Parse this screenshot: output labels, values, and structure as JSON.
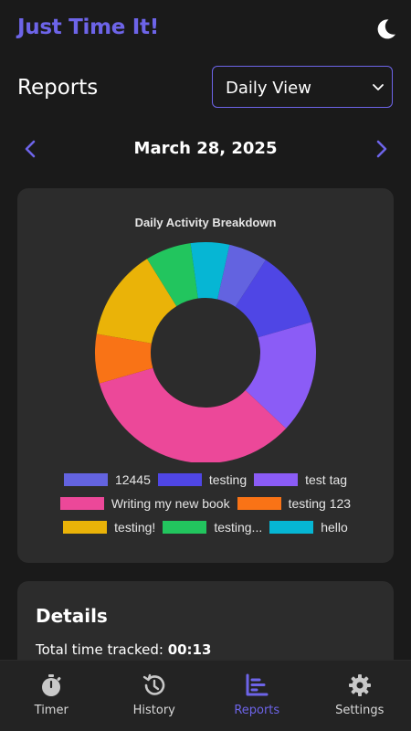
{
  "app": {
    "title": "Just Time It!"
  },
  "header": {
    "theme_icon": "moon-icon"
  },
  "reports": {
    "title": "Reports",
    "view_select": {
      "selected": "Daily View",
      "icon": "chevron-down-icon"
    }
  },
  "date_nav": {
    "date": "March 28, 2025",
    "prev_icon": "chevron-left-icon",
    "next_icon": "chevron-right-icon"
  },
  "colors": {
    "accent": "#6d64e8",
    "card": "#2c2c2c",
    "background": "#1a1a1a"
  },
  "chart_data": {
    "type": "pie",
    "title": "Daily Activity Breakdown",
    "donut": true,
    "legend_position": "bottom",
    "categories": [
      "12445",
      "testing",
      "test tag",
      "Writing my new book",
      "testing 123",
      "testing!",
      "testing...",
      "hello"
    ],
    "values": [
      5.5,
      11,
      16,
      32.5,
      7,
      13,
      6.5,
      5.5
    ],
    "colors": [
      "#6363e0",
      "#4f46e5",
      "#8b5cf6",
      "#ec4899",
      "#f97316",
      "#eab308",
      "#22c55e",
      "#06b6d4"
    ]
  },
  "details": {
    "title": "Details",
    "total_label": "Total time tracked:",
    "total_value": "00:13"
  },
  "bottom_nav": {
    "items": [
      {
        "label": "Timer",
        "icon": "stopwatch-icon",
        "active": false
      },
      {
        "label": "History",
        "icon": "history-icon",
        "active": false
      },
      {
        "label": "Reports",
        "icon": "bar-chart-icon",
        "active": true
      },
      {
        "label": "Settings",
        "icon": "gear-icon",
        "active": false
      }
    ]
  }
}
